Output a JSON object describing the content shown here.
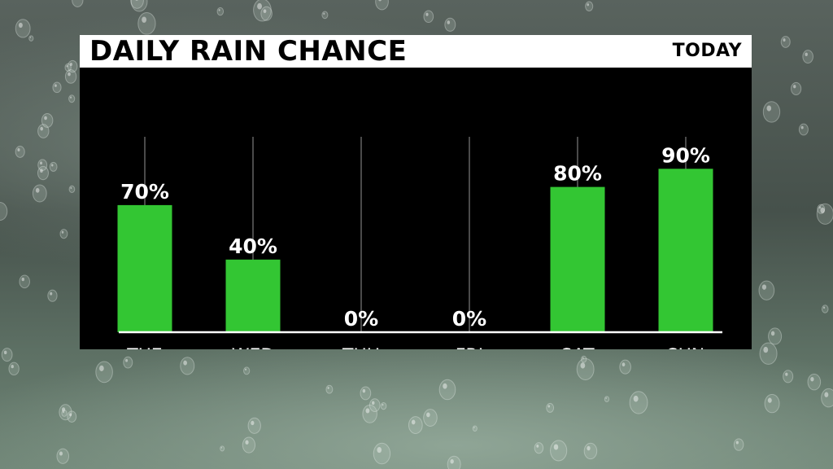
{
  "header": {
    "title": "DAILY RAIN CHANCE",
    "period": "TODAY"
  },
  "colors": {
    "bar": "#33c633",
    "panel": "#000000",
    "header": "#ffffff",
    "guide": "#4a4a4a"
  },
  "chart_data": {
    "type": "bar",
    "title": "DAILY RAIN CHANCE",
    "categories": [
      "TUE",
      "WED",
      "THU",
      "FRI",
      "SAT",
      "SUN"
    ],
    "values": [
      70,
      40,
      0,
      0,
      80,
      90
    ],
    "value_labels": [
      "70%",
      "40%",
      "0%",
      "0%",
      "80%",
      "90%"
    ],
    "unit": "%",
    "ylim": [
      0,
      100
    ],
    "grid": false
  }
}
